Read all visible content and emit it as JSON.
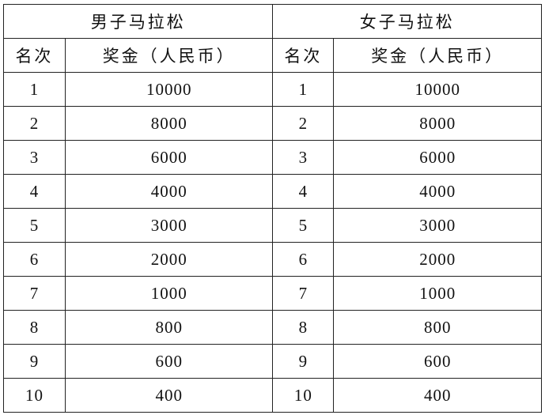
{
  "groups": [
    {
      "title": "男子马拉松",
      "col_rank": "名次",
      "col_prize": "奖金（人民币）"
    },
    {
      "title": "女子马拉松",
      "col_rank": "名次",
      "col_prize": "奖金（人民币）"
    }
  ],
  "rows": [
    {
      "rank": "1",
      "prize": "10000"
    },
    {
      "rank": "2",
      "prize": "8000"
    },
    {
      "rank": "3",
      "prize": "6000"
    },
    {
      "rank": "4",
      "prize": "4000"
    },
    {
      "rank": "5",
      "prize": "3000"
    },
    {
      "rank": "6",
      "prize": "2000"
    },
    {
      "rank": "7",
      "prize": "1000"
    },
    {
      "rank": "8",
      "prize": "800"
    },
    {
      "rank": "9",
      "prize": "600"
    },
    {
      "rank": "10",
      "prize": "400"
    }
  ]
}
